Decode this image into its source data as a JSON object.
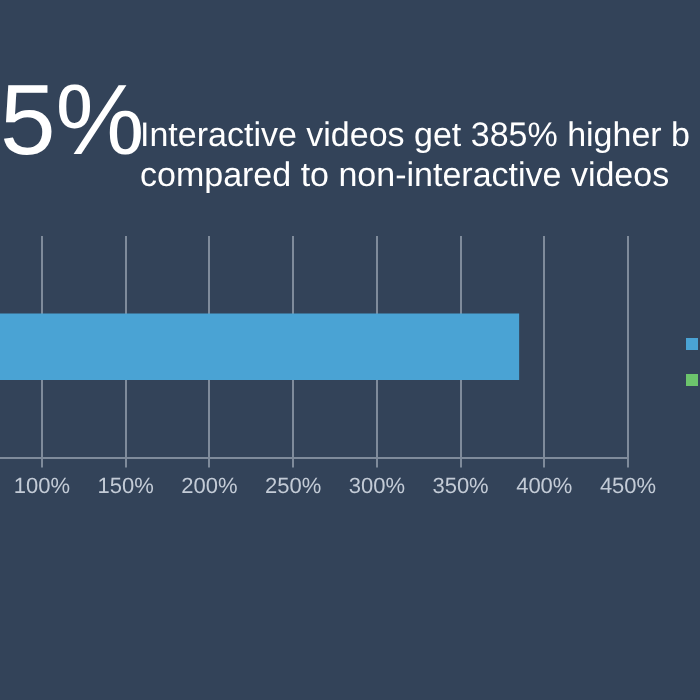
{
  "chart_data": {
    "type": "bar",
    "orientation": "horizontal",
    "title": "Interactive videos get 385% higher b\ncompared to non-interactive videos",
    "annotations": [
      "5%"
    ],
    "categories": [
      null
    ],
    "series": [
      {
        "color": "#4aa3d4",
        "values": [
          385
        ]
      }
    ],
    "xlim": [
      75,
      450
    ],
    "xticks": [
      {
        "value": 100,
        "label": "100%"
      },
      {
        "value": 150,
        "label": "150%"
      },
      {
        "value": 200,
        "label": "200%"
      },
      {
        "value": 250,
        "label": "250%"
      },
      {
        "value": 300,
        "label": "300%"
      },
      {
        "value": 350,
        "label": "350%"
      },
      {
        "value": 400,
        "label": "400%"
      },
      {
        "value": 450,
        "label": "450%"
      }
    ],
    "grid": "x"
  }
}
